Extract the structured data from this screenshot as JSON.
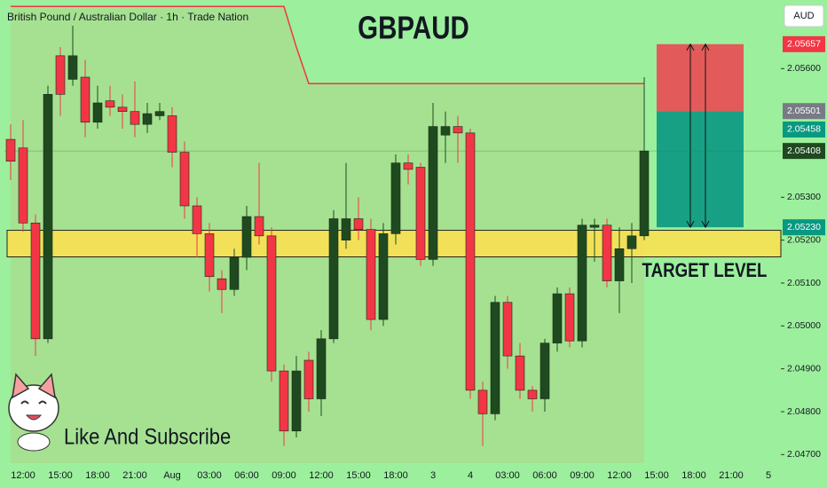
{
  "chart_data": {
    "type": "candlestick",
    "title": "GBPAUD",
    "subtitle": "British Pound / Australian Dollar · 1h · Trade Nation",
    "currency": "AUD",
    "annotation": "Like And Subscribe",
    "categories": [
      null,
      "12:00",
      null,
      null,
      "15:00",
      null,
      null,
      "18:00",
      null,
      null,
      "21:00",
      null,
      null,
      "Aug",
      null,
      null,
      "03:00",
      null,
      null,
      "06:00",
      null,
      null,
      "09:00",
      null,
      null,
      "12:00",
      null,
      null,
      "15:00",
      null,
      null,
      "18:00",
      null,
      null,
      "3",
      null,
      null,
      "4",
      null,
      null,
      "03:00",
      null,
      null,
      "06:00",
      null,
      null,
      "09:00",
      null,
      null,
      "12:00",
      null,
      null,
      "15:00",
      null,
      null,
      "18:00",
      null,
      null,
      "21:00",
      null,
      null,
      "5"
    ],
    "open": [
      2.05435,
      2.05415,
      2.0524,
      2.0497,
      2.0563,
      2.05575,
      2.0558,
      2.05475,
      2.05525,
      2.0551,
      2.055,
      2.0547,
      2.0549,
      2.0549,
      2.05405,
      2.0528,
      2.05215,
      2.0511,
      2.05085,
      2.0516,
      2.05255,
      2.0521,
      2.04895,
      2.04755,
      2.0492,
      2.0483,
      2.0497,
      2.052,
      2.0525,
      2.05225,
      2.05015,
      2.05215,
      2.0538,
      2.0537,
      2.05155,
      2.05445,
      2.05465,
      2.0545,
      2.0485,
      2.04795,
      2.05055,
      2.0493,
      2.0485,
      2.0483,
      2.0496,
      2.05075,
      2.04965,
      2.0523,
      2.05235,
      2.05105,
      2.0518,
      2.0521,
      null,
      null,
      null,
      null,
      null,
      null,
      null,
      null,
      null,
      null
    ],
    "high": [
      2.0547,
      2.0548,
      2.0526,
      2.0556,
      2.0565,
      2.057,
      2.0562,
      2.0556,
      2.0556,
      2.0554,
      2.0557,
      2.0552,
      2.0552,
      2.0551,
      2.0543,
      2.053,
      2.0524,
      2.0513,
      2.0518,
      2.0528,
      2.0538,
      2.0523,
      2.0491,
      2.0493,
      2.0494,
      2.0499,
      2.0527,
      2.0538,
      2.053,
      2.0525,
      2.0524,
      2.054,
      2.054,
      2.0538,
      2.0552,
      2.055,
      2.0549,
      2.0546,
      2.0487,
      2.0507,
      2.0507,
      2.0496,
      2.0486,
      2.0497,
      2.0509,
      2.0509,
      2.0525,
      2.0525,
      2.0525,
      2.0523,
      2.0524,
      2.0558,
      null,
      null,
      null,
      null,
      null,
      null,
      null,
      null,
      null,
      null
    ],
    "low": [
      2.0534,
      2.0522,
      2.0493,
      2.0496,
      2.0549,
      2.0556,
      2.0544,
      2.0546,
      2.0549,
      2.0546,
      2.0544,
      2.0545,
      2.0548,
      2.0537,
      2.0525,
      2.0516,
      2.0508,
      2.0503,
      2.0507,
      2.0513,
      2.0519,
      2.0487,
      2.0472,
      2.0474,
      2.048,
      2.0479,
      2.0496,
      2.0518,
      2.052,
      2.0499,
      2.05,
      2.0519,
      2.0533,
      2.0514,
      2.0514,
      2.0538,
      2.0538,
      2.0483,
      2.0472,
      2.0478,
      2.049,
      2.0483,
      2.048,
      2.048,
      2.0494,
      2.0495,
      2.0495,
      2.0515,
      2.0509,
      2.0503,
      2.051,
      2.052,
      null,
      null,
      null,
      null,
      null,
      null,
      null,
      null,
      null,
      null
    ],
    "close": [
      2.05384,
      2.0524,
      2.0497,
      2.0554,
      2.0554,
      2.0563,
      2.05475,
      2.0552,
      2.0551,
      2.055,
      2.0547,
      2.05495,
      2.055,
      2.05405,
      2.0528,
      2.05215,
      2.05115,
      2.05085,
      2.0516,
      2.05255,
      2.0521,
      2.04895,
      2.04755,
      2.04895,
      2.0483,
      2.0497,
      2.0525,
      2.0525,
      2.05225,
      2.05015,
      2.05215,
      2.0538,
      2.05365,
      2.05155,
      2.05465,
      2.05465,
      2.0545,
      2.0485,
      2.04795,
      2.05055,
      2.0493,
      2.0485,
      2.0483,
      2.0496,
      2.05075,
      2.04965,
      2.05235,
      2.05235,
      2.05105,
      2.0518,
      2.0521,
      2.05408,
      null,
      null,
      null,
      null,
      null,
      null,
      null,
      null,
      null,
      null
    ],
    "up_color": "#1f4a20",
    "down_color": "#f23645",
    "ylim": [
      2.0468,
      2.0576
    ],
    "yticks": [
      {
        "value": 2.056,
        "label": "2.05600"
      },
      {
        "value": 2.053,
        "label": "2.05300"
      },
      {
        "value": 2.052,
        "label": "2.05200"
      },
      {
        "value": 2.051,
        "label": "2.05100"
      },
      {
        "value": 2.05,
        "label": "2.05000"
      },
      {
        "value": 2.049,
        "label": "2.04900"
      },
      {
        "value": 2.048,
        "label": "2.04800"
      },
      {
        "value": 2.047,
        "label": "2.04700"
      }
    ],
    "line": {
      "color": "#f23645",
      "values": [
        2.05745,
        2.05745,
        2.05745,
        2.05745,
        2.05745,
        2.05745,
        2.05745,
        2.05745,
        2.05745,
        2.05745,
        2.05745,
        2.05745,
        2.05745,
        2.05745,
        2.05745,
        2.05745,
        2.05745,
        2.05745,
        2.05745,
        2.05745,
        2.05745,
        2.05745,
        2.05745,
        2.0565,
        2.05565,
        2.05565,
        2.05565,
        2.05565,
        2.05565,
        2.05565,
        2.05565,
        2.05565,
        2.05565,
        2.05565,
        2.05565,
        2.05565,
        2.05565,
        2.05565,
        2.05565,
        2.05565,
        2.05565,
        2.05565,
        2.05565,
        2.05565,
        2.05565,
        2.05565,
        2.05565,
        2.05565,
        2.05565,
        2.05565,
        2.05565,
        2.05565,
        null,
        null,
        null,
        null,
        null,
        null,
        null,
        null,
        null,
        null
      ]
    },
    "zone": {
      "low": 2.05161,
      "high": 2.05223,
      "color": "#ffe14d",
      "label": "TARGET LEVEL"
    },
    "price_labels": [
      {
        "value": 2.05657,
        "label": "2.05657",
        "color": "#f23645"
      },
      {
        "value": 2.05501,
        "label": "2.05501",
        "color": "#787b86"
      },
      {
        "value": 2.05458,
        "label": "2.05458",
        "color": "#089981"
      },
      {
        "value": 2.05408,
        "label": "2.05408",
        "color": "#1f4a20"
      },
      {
        "value": 2.0523,
        "label": "2.05230",
        "color": "#089981"
      }
    ]
  }
}
